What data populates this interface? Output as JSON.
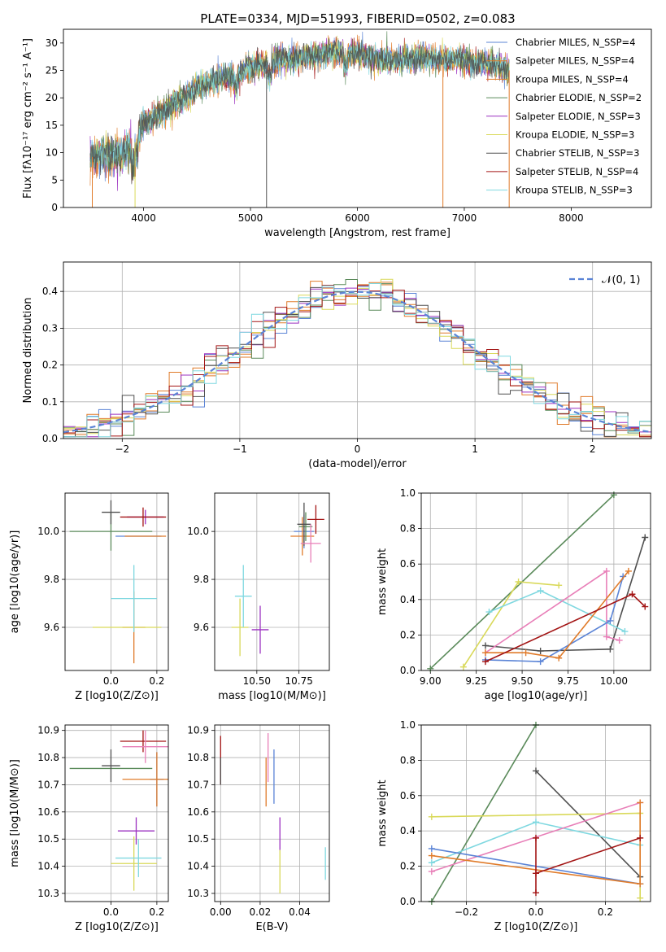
{
  "figure_title": "PLATE=0334, MJD=51993, FIBERID=0502, z=0.083",
  "series_colors": [
    "#5b84d6",
    "#e07b2a",
    "#e07b2a",
    "#5a8a5a",
    "#9b30c0",
    "#d9d95a",
    "#505050",
    "#a31515",
    "#7fd8e0"
  ],
  "chart_data": [
    {
      "type": "line",
      "title": "PLATE=0334, MJD=51993, FIBERID=0502, z=0.083",
      "xlabel": "wavelength [Angstrom, rest frame]",
      "ylabel": "Flux [fλ10⁻¹⁷ erg cm⁻² s⁻¹ A⁻¹]",
      "xlim": [
        3250,
        8750
      ],
      "ylim": [
        0,
        32.5
      ],
      "xticks": [
        "4000",
        "5000",
        "6000",
        "7000",
        "8000"
      ],
      "yticks": [
        "0",
        "5",
        "10",
        "15",
        "20",
        "25",
        "30"
      ],
      "legend_position": "right",
      "spectrum_anchor": {
        "x": [
          3500,
          3600,
          3700,
          3800,
          3900,
          4000,
          4100,
          4200,
          4300,
          4400,
          4500,
          4600,
          4700,
          4800,
          4900,
          5000,
          5100,
          5200,
          5300,
          5400,
          5500,
          5600,
          5700,
          5800,
          5900,
          6000,
          6100,
          6200,
          6300,
          6400,
          6500,
          6600,
          6700,
          6800,
          6900,
          7000,
          7100,
          7200,
          7300,
          7400
        ],
        "y": [
          9,
          10,
          9.5,
          10,
          11,
          15.5,
          16.5,
          17.5,
          19,
          20,
          22,
          22.5,
          23.5,
          24,
          24.5,
          25.5,
          26,
          26.5,
          27,
          27,
          27.5,
          27.5,
          28,
          28.5,
          28.5,
          28,
          27.5,
          27,
          27,
          27,
          27,
          27.5,
          27,
          27,
          27,
          27,
          26.5,
          26.5,
          26,
          25
        ]
      },
      "series": [
        {
          "name": "Chabrier MILES, N_SSP=4",
          "color": "#5b84d6"
        },
        {
          "name": "Salpeter MILES, N_SSP=4",
          "color": "#e07b2a"
        },
        {
          "name": "Kroupa MILES, N_SSP=4",
          "color": "#e07b2a"
        },
        {
          "name": "Chabrier ELODIE, N_SSP=2",
          "color": "#5a8a5a"
        },
        {
          "name": "Salpeter ELODIE, N_SSP=3",
          "color": "#9b30c0"
        },
        {
          "name": "Kroupa ELODIE, N_SSP=3",
          "color": "#d9d95a"
        },
        {
          "name": "Chabrier STELIB, N_SSP=3",
          "color": "#505050"
        },
        {
          "name": "Salpeter STELIB, N_SSP=4",
          "color": "#a31515"
        },
        {
          "name": "Kroupa STELIB, N_SSP=3",
          "color": "#7fd8e0"
        }
      ]
    },
    {
      "type": "histogram",
      "xlabel": "(data-model)/error",
      "ylabel": "Normed distribution",
      "xlim": [
        -2.5,
        2.5
      ],
      "ylim": [
        0,
        0.48
      ],
      "xticks": [
        "−2",
        "−1",
        "0",
        "1",
        "2"
      ],
      "yticks": [
        "0.0",
        "0.1",
        "0.2",
        "0.3",
        "0.4"
      ],
      "grid": true,
      "legend": "𝒩(0, 1)",
      "legend_position": "top-right",
      "bin_width": 0.1
    },
    {
      "type": "errorbar",
      "xlabel": "Z [log10(Z/Z⊙)]",
      "ylabel": "age  [log10(age/yr)]",
      "xlim": [
        -0.2,
        0.25
      ],
      "ylim": [
        9.42,
        10.16
      ],
      "xticks": [
        "0.0",
        "0.2"
      ],
      "yticks": [
        "9.6",
        "9.8",
        "10.0"
      ],
      "points": [
        {
          "x": 0.12,
          "y": 9.98,
          "xerr": 0.1,
          "yerr": 0.0,
          "color": "#5b84d6"
        },
        {
          "x": 0.15,
          "y": 9.98,
          "xerr": 0.09,
          "yerr": 0.0,
          "color": "#e07b2a"
        },
        {
          "x": 0.1,
          "y": 9.6,
          "xerr": 0.05,
          "yerr": 0.15,
          "color": "#e07b2a"
        },
        {
          "x": 0.0,
          "y": 10.0,
          "xerr": 0.18,
          "yerr": 0.08,
          "color": "#5a8a5a"
        },
        {
          "x": 0.15,
          "y": 10.06,
          "xerr": 0.08,
          "yerr": 0.03,
          "color": "#9b30c0"
        },
        {
          "x": 0.07,
          "y": 9.6,
          "xerr": 0.15,
          "yerr": 0.0,
          "color": "#d9d95a"
        },
        {
          "x": 0.0,
          "y": 10.08,
          "xerr": 0.04,
          "yerr": 0.05,
          "color": "#505050"
        },
        {
          "x": 0.14,
          "y": 10.06,
          "xerr": 0.1,
          "yerr": 0.04,
          "color": "#a31515"
        },
        {
          "x": 0.1,
          "y": 9.72,
          "xerr": 0.1,
          "yerr": 0.14,
          "color": "#7fd8e0"
        }
      ]
    },
    {
      "type": "errorbar",
      "xlabel": "mass [log10(M/M⊙)]",
      "xlim": [
        10.25,
        10.93
      ],
      "ylim": [
        9.42,
        10.16
      ],
      "xticks": [
        "10.50",
        "10.75"
      ],
      "yticks": [
        "9.6",
        "9.8",
        "10.0"
      ],
      "points": [
        {
          "x": 10.78,
          "y": 10.0,
          "xerr": 0.06,
          "yerr": 0.07,
          "color": "#5b84d6"
        },
        {
          "x": 10.77,
          "y": 9.98,
          "xerr": 0.07,
          "yerr": 0.08,
          "color": "#e07b2a"
        },
        {
          "x": 10.79,
          "y": 10.02,
          "xerr": 0.04,
          "yerr": 0.06,
          "color": "#5a8a5a"
        },
        {
          "x": 10.52,
          "y": 9.59,
          "xerr": 0.05,
          "yerr": 0.1,
          "color": "#9b30c0"
        },
        {
          "x": 10.4,
          "y": 9.6,
          "xerr": 0.05,
          "yerr": 0.12,
          "color": "#d9d95a"
        },
        {
          "x": 10.78,
          "y": 10.03,
          "xerr": 0.04,
          "yerr": 0.09,
          "color": "#505050"
        },
        {
          "x": 10.85,
          "y": 10.05,
          "xerr": 0.05,
          "yerr": 0.06,
          "color": "#a31515"
        },
        {
          "x": 10.42,
          "y": 9.73,
          "xerr": 0.05,
          "yerr": 0.13,
          "color": "#7fd8e0"
        },
        {
          "x": 10.82,
          "y": 9.95,
          "xerr": 0.06,
          "yerr": 0.08,
          "color": "#e87fb8"
        }
      ]
    },
    {
      "type": "line",
      "xlabel": "age  [log10(age/yr)]",
      "ylabel": "mass weight",
      "xlim": [
        8.95,
        10.2
      ],
      "ylim": [
        0,
        1.0
      ],
      "xticks": [
        "9.00",
        "9.25",
        "9.50",
        "9.75",
        "10.00"
      ],
      "yticks": [
        "0.0",
        "0.2",
        "0.4",
        "0.6",
        "0.8",
        "1.0"
      ],
      "series": [
        {
          "color": "#5a8a5a",
          "x": [
            9.0,
            10.0
          ],
          "y": [
            0.01,
            0.99
          ]
        },
        {
          "color": "#505050",
          "x": [
            9.3,
            9.6,
            9.98,
            10.17
          ],
          "y": [
            0.14,
            0.11,
            0.12,
            0.75
          ]
        },
        {
          "color": "#d9d95a",
          "x": [
            9.18,
            9.48,
            9.7
          ],
          "y": [
            0.02,
            0.5,
            0.48
          ]
        },
        {
          "color": "#7fd8e0",
          "x": [
            9.32,
            9.6,
            10.06
          ],
          "y": [
            0.33,
            0.45,
            0.22
          ]
        },
        {
          "color": "#e87fb8",
          "x": [
            9.3,
            9.96,
            9.96,
            10.03
          ],
          "y": [
            0.1,
            0.56,
            0.19,
            0.17
          ]
        },
        {
          "color": "#5b84d6",
          "x": [
            9.3,
            9.6,
            9.98,
            10.05
          ],
          "y": [
            0.06,
            0.05,
            0.28,
            0.53
          ]
        },
        {
          "color": "#e07b2a",
          "x": [
            9.3,
            9.52,
            9.7,
            10.08
          ],
          "y": [
            0.1,
            0.1,
            0.07,
            0.56
          ]
        },
        {
          "color": "#a31515",
          "x": [
            9.3,
            10.1,
            10.17
          ],
          "y": [
            0.05,
            0.43,
            0.36
          ]
        }
      ]
    },
    {
      "type": "errorbar",
      "xlabel": "Z [log10(Z/Z⊙)]",
      "ylabel": "mass [log10(M/M⊙)]",
      "xlim": [
        -0.2,
        0.25
      ],
      "ylim": [
        10.27,
        10.92
      ],
      "xticks": [
        "0.0",
        "0.2"
      ],
      "yticks": [
        "10.3",
        "10.4",
        "10.5",
        "10.6",
        "10.7",
        "10.8",
        "10.9"
      ],
      "points": [
        {
          "x": 0.2,
          "y": 10.72,
          "xerr": 0.03,
          "yerr": 0.1,
          "color": "#5b84d6"
        },
        {
          "x": 0.15,
          "y": 10.72,
          "xerr": 0.1,
          "yerr": 0.0,
          "color": "#e07b2a"
        },
        {
          "x": 0.2,
          "y": 10.72,
          "xerr": 0.0,
          "yerr": 0.1,
          "color": "#e07b2a"
        },
        {
          "x": 0.0,
          "y": 10.76,
          "xerr": 0.18,
          "yerr": 0.0,
          "color": "#5a8a5a"
        },
        {
          "x": 0.11,
          "y": 10.53,
          "xerr": 0.08,
          "yerr": 0.05,
          "color": "#9b30c0"
        },
        {
          "x": 0.1,
          "y": 10.41,
          "xerr": 0.1,
          "yerr": 0.1,
          "color": "#d9d95a"
        },
        {
          "x": 0.0,
          "y": 10.77,
          "xerr": 0.04,
          "yerr": 0.06,
          "color": "#505050"
        },
        {
          "x": 0.14,
          "y": 10.86,
          "xerr": 0.1,
          "yerr": 0.04,
          "color": "#a31515"
        },
        {
          "x": 0.12,
          "y": 10.43,
          "xerr": 0.1,
          "yerr": 0.07,
          "color": "#7fd8e0"
        },
        {
          "x": 0.15,
          "y": 10.84,
          "xerr": 0.1,
          "yerr": 0.06,
          "color": "#e87fb8"
        }
      ]
    },
    {
      "type": "errorbar",
      "xlabel": "E(B-V)",
      "xlim": [
        -0.003,
        0.055
      ],
      "ylim": [
        10.27,
        10.92
      ],
      "xticks": [
        "0.00",
        "0.02",
        "0.04"
      ],
      "yticks": [
        "10.3",
        "10.4",
        "10.5",
        "10.6",
        "10.7",
        "10.8",
        "10.9"
      ],
      "points": [
        {
          "x": 0.0,
          "y": 10.79,
          "yerr": 0.09,
          "color": "#a31515"
        },
        {
          "x": 0.0,
          "y": 10.75,
          "yerr": 0.05,
          "color": "#505050"
        },
        {
          "x": 0.024,
          "y": 10.8,
          "yerr": 0.09,
          "color": "#e87fb8"
        },
        {
          "x": 0.023,
          "y": 10.71,
          "yerr": 0.09,
          "color": "#e07b2a"
        },
        {
          "x": 0.027,
          "y": 10.73,
          "yerr": 0.1,
          "color": "#5b84d6"
        },
        {
          "x": 0.03,
          "y": 10.52,
          "yerr": 0.06,
          "color": "#9b30c0"
        },
        {
          "x": 0.03,
          "y": 10.38,
          "yerr": 0.08,
          "color": "#d9d95a"
        },
        {
          "x": 0.053,
          "y": 10.41,
          "yerr": 0.06,
          "color": "#7fd8e0"
        }
      ]
    },
    {
      "type": "line",
      "xlabel": "Z [log10(Z/Z⊙)]",
      "ylabel": "mass weight",
      "xlim": [
        -0.33,
        0.33
      ],
      "ylim": [
        0,
        1.0
      ],
      "xticks": [
        "−0.2",
        "0.0",
        "0.2"
      ],
      "yticks": [
        "0.0",
        "0.2",
        "0.4",
        "0.6",
        "0.8",
        "1.0"
      ],
      "series": [
        {
          "color": "#5a8a5a",
          "x": [
            -0.3,
            0.0
          ],
          "y": [
            0.0,
            1.0
          ]
        },
        {
          "color": "#505050",
          "x": [
            0.0,
            0.3,
            0.3
          ],
          "y": [
            0.74,
            0.14,
            0.1
          ]
        },
        {
          "color": "#d9d95a",
          "x": [
            -0.3,
            0.3,
            0.3
          ],
          "y": [
            0.48,
            0.5,
            0.02
          ]
        },
        {
          "color": "#7fd8e0",
          "x": [
            -0.3,
            0.0,
            0.3
          ],
          "y": [
            0.22,
            0.45,
            0.32
          ]
        },
        {
          "color": "#e87fb8",
          "x": [
            -0.3,
            0.3
          ],
          "y": [
            0.17,
            0.56
          ]
        },
        {
          "color": "#5b84d6",
          "x": [
            -0.3,
            0.3
          ],
          "y": [
            0.3,
            0.1
          ]
        },
        {
          "color": "#e07b2a",
          "x": [
            -0.3,
            0.3,
            0.3
          ],
          "y": [
            0.26,
            0.1,
            0.56
          ]
        },
        {
          "color": "#a31515",
          "x": [
            0.0,
            0.0,
            0.0,
            0.3
          ],
          "y": [
            0.05,
            0.36,
            0.16,
            0.36
          ]
        }
      ]
    }
  ]
}
